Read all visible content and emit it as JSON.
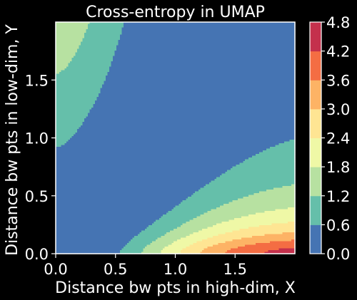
{
  "chart_data": {
    "type": "heatmap",
    "subtype": "filled-contour",
    "title": "Cross-entropy in UMAP",
    "xlabel": "Distance bw pts in high-dim, X",
    "ylabel": "Distance bw pts in low-dim, Y",
    "xlim": [
      0,
      2
    ],
    "ylim": [
      0,
      2
    ],
    "x_ticks": [
      "0.0",
      "0.5",
      "1.0",
      "1.5"
    ],
    "y_ticks": [
      "0.0",
      "0.5",
      "1.0",
      "1.5"
    ],
    "x_tick_values": [
      0,
      0.5,
      1.0,
      1.5
    ],
    "y_tick_values": [
      0,
      0.5,
      1.0,
      1.5
    ],
    "colormap": "Spectral_r",
    "colorbar": {
      "levels": [
        0.0,
        0.6,
        1.2,
        1.8,
        2.4,
        3.0,
        3.6,
        4.2,
        4.8
      ],
      "tick_labels": [
        "0.0",
        "0.6",
        "1.2",
        "1.8",
        "2.4",
        "3.0",
        "3.6",
        "4.2",
        "4.8"
      ],
      "colors": [
        "#4574b3",
        "#65bfaa",
        "#b7e1a1",
        "#eff8a6",
        "#fee593",
        "#fdb365",
        "#f46d43",
        "#c4304c"
      ]
    },
    "axes_frame_color": "#ffffff",
    "background_color": "#000000"
  }
}
